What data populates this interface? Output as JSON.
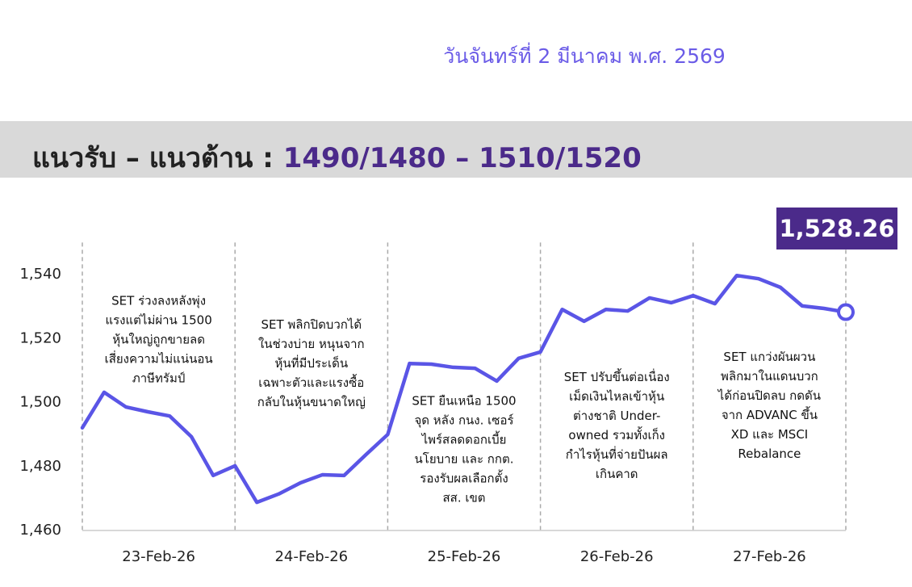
{
  "header": {
    "date": "วันจันทร์ที่ 2 มีนาคม พ.ศ. 2569",
    "title": "แนวรับ – แนวต้าน :",
    "levels": "1490/1480 – 1510/1520"
  },
  "chart_data": {
    "type": "line",
    "x": [
      0,
      1,
      2,
      3,
      4,
      5,
      6,
      7,
      8,
      9,
      10,
      11,
      12,
      13,
      14,
      15,
      16,
      17,
      18,
      19,
      20,
      21,
      22,
      23,
      24,
      25,
      26,
      27,
      28,
      29,
      30,
      31,
      32,
      33,
      34,
      35
    ],
    "values": [
      1492.1,
      1503.2,
      1498.6,
      1497.1,
      1495.8,
      1489.3,
      1477.2,
      1480.2,
      1468.8,
      1471.4,
      1474.9,
      1477.4,
      1477.2,
      1483.7,
      1490,
      1512.2,
      1512,
      1511,
      1510.7,
      1506.7,
      1513.8,
      1515.8,
      1529.1,
      1525.4,
      1529.1,
      1528.6,
      1532.7,
      1531.2,
      1533.4,
      1530.9,
      1539.7,
      1538.7,
      1536,
      1530.2,
      1529.4,
      1528.26
    ],
    "value_labels": [
      null,
      null,
      null,
      null,
      null,
      null,
      null,
      null,
      null,
      null,
      null,
      null,
      null,
      null,
      null,
      null,
      null,
      null,
      null,
      null,
      null,
      null,
      null,
      null,
      null,
      null,
      null,
      null,
      null,
      null,
      null,
      null,
      null,
      null,
      null,
      "1,528.26"
    ],
    "color": "#5a55e6",
    "xlim": [
      0,
      35
    ],
    "ylim": [
      1460,
      1550
    ],
    "yticks": [
      {
        "value": 1460,
        "label": "1,460"
      },
      {
        "value": 1480,
        "label": "1,480"
      },
      {
        "value": 1500,
        "label": "1,500"
      },
      {
        "value": 1520,
        "label": "1,520"
      },
      {
        "value": 1540,
        "label": "1,540"
      }
    ],
    "xticks": [
      {
        "value": 3.5,
        "label": "23-Feb-26"
      },
      {
        "value": 10.5,
        "label": "24-Feb-26"
      },
      {
        "value": 17.5,
        "label": "25-Feb-26"
      },
      {
        "value": 24.5,
        "label": "26-Feb-26"
      },
      {
        "value": 31.5,
        "label": "27-Feb-26"
      }
    ],
    "x_grid": [
      0,
      7,
      14,
      21,
      28,
      35
    ],
    "annotations": [
      {
        "x": 3.5,
        "y": 1540,
        "lines": [
          "SET ร่วงลงหลังพุ่ง",
          "แรงแต่ไม่ผ่าน 1500",
          "หุ้นใหญ่ถูกขายลด",
          "เสี่ยงความไม่แน่นอน",
          "ภาษีทรัมป์"
        ]
      },
      {
        "x": 10.5,
        "y": 1532.6,
        "lines": [
          "SET พลิกปิดบวกได้",
          "ในช่วงบ่าย หนุนจาก",
          "หุ้นที่มีประเด็น",
          "เฉพาะตัวและแรงซื้อ",
          "กลับในหุ้นขนาดใหญ่"
        ]
      },
      {
        "x": 17.5,
        "y": 1508.7,
        "lines": [
          "SET ยืนเหนือ 1500",
          "จุด หลัง กนง. เซอร์",
          "ไพร์สลดดอกเบี้ย",
          "นโยบาย และ กกต.",
          "รองรับผลเลือกตั้ง",
          "สส. เขต"
        ]
      },
      {
        "x": 24.5,
        "y": 1516.2,
        "lines": [
          "SET ปรับขึ้นต่อเนื่อง",
          "เม็ดเงินไหลเข้าหุ้น",
          "ต่างชาติ Under-",
          "owned รวมทั้งเก็ง",
          "กำไรหุ้นที่จ่ายปันผล",
          "เกินคาด"
        ]
      },
      {
        "x": 31.5,
        "y": 1522.5,
        "lines": [
          "SET แกว่งผันผวน",
          "พลิกมาในแดนบวก",
          "ได้ก่อนปิดลบ กดดัน",
          "จาก ADVANC ขึ้น",
          "XD และ MSCI",
          "Rebalance"
        ]
      }
    ]
  }
}
